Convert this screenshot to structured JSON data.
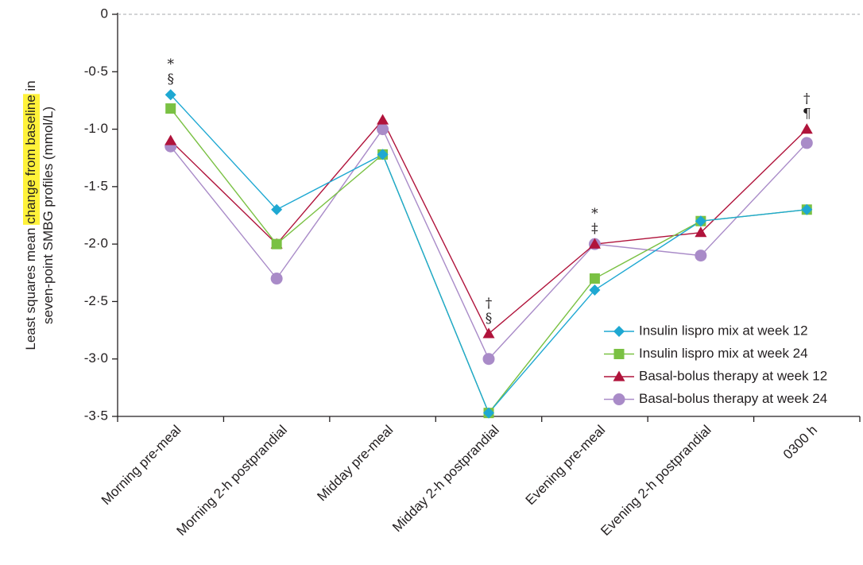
{
  "chart_data": {
    "type": "line",
    "ylabel_lines": [
      {
        "segments": [
          {
            "text": "Least squares mean ",
            "highlight": false
          },
          {
            "text": "change from baseline",
            "highlight": true
          },
          {
            "text": " in",
            "highlight": false
          }
        ]
      },
      {
        "segments": [
          {
            "text": "seven-point SMBG profiles (mmol/L)",
            "highlight": false
          }
        ]
      }
    ],
    "highlight_color": "#fff23a",
    "categories": [
      "Morning pre-meal",
      "Morning 2-h postprandial",
      "Midday pre-meal",
      "Midday 2-h postprandial",
      "Evening pre-meal",
      "Evening 2-h postprandial",
      "0300 h"
    ],
    "ylim": [
      -3.5,
      0
    ],
    "yticks": [
      {
        "value": 0,
        "label": "0"
      },
      {
        "value": -0.5,
        "label": "-0·5"
      },
      {
        "value": -1.0,
        "label": "-1·0"
      },
      {
        "value": -1.5,
        "label": "-1·5"
      },
      {
        "value": -2.0,
        "label": "-2·0"
      },
      {
        "value": -2.5,
        "label": "-2·5"
      },
      {
        "value": -3.0,
        "label": "-3·0"
      },
      {
        "value": -3.5,
        "label": "-3·5"
      }
    ],
    "zero_line_dashed": true,
    "series": [
      {
        "name": "Insulin lispro mix at week 12",
        "color": "#1ea8d2",
        "marker": "diamond",
        "values": [
          -0.7,
          -1.7,
          -1.22,
          -3.47,
          -2.4,
          -1.8,
          -1.7
        ]
      },
      {
        "name": "Insulin lispro mix at week 24",
        "color": "#7ac143",
        "marker": "square",
        "values": [
          -0.82,
          -2.0,
          -1.22,
          -3.47,
          -2.3,
          -1.8,
          -1.7
        ]
      },
      {
        "name": "Basal-bolus therapy at week 12",
        "color": "#b0133b",
        "marker": "triangle",
        "values": [
          -1.1,
          -2.0,
          -0.92,
          -2.78,
          -2.0,
          -1.9,
          -1.0
        ]
      },
      {
        "name": "Basal-bolus therapy at week 24",
        "color": "#a98bc8",
        "marker": "circle",
        "values": [
          -1.15,
          -2.3,
          -1.0,
          -3.0,
          -2.0,
          -2.1,
          -1.12
        ]
      }
    ],
    "legend_position": "bottom-right",
    "annotations": [
      {
        "category_index": 0,
        "anchor_value": -0.7,
        "symbols": [
          "*",
          "§"
        ]
      },
      {
        "category_index": 3,
        "anchor_value": -2.78,
        "symbols": [
          "†",
          "§"
        ]
      },
      {
        "category_index": 4,
        "anchor_value": -2.0,
        "symbols": [
          "*",
          "‡"
        ]
      },
      {
        "category_index": 6,
        "anchor_value": -1.0,
        "symbols": [
          "†",
          "¶"
        ]
      }
    ],
    "grid": false
  }
}
